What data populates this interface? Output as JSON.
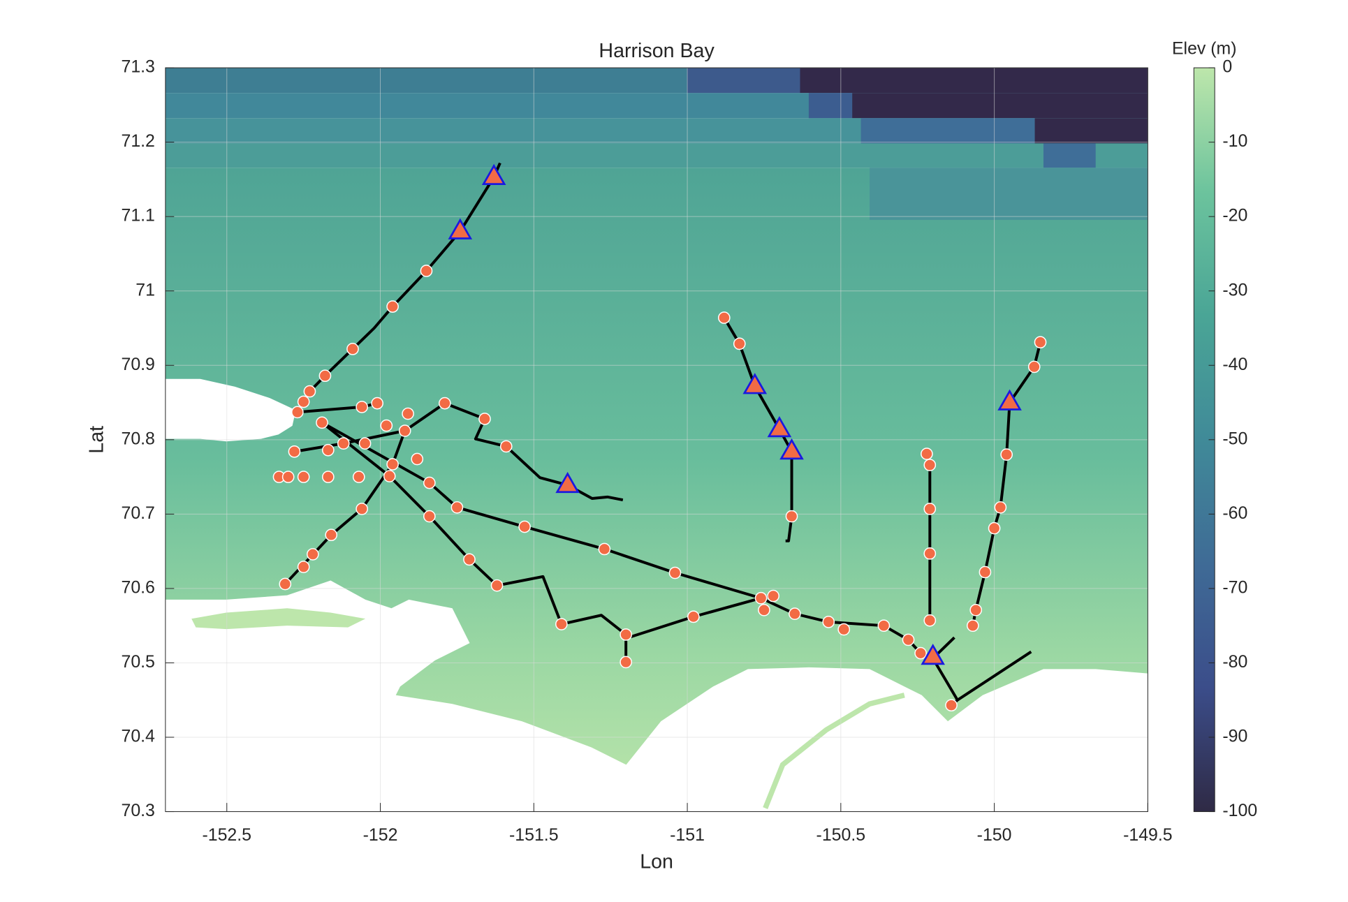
{
  "chart_data": {
    "type": "map",
    "title": "Harrison Bay",
    "xlabel": "Lon",
    "ylabel": "Lat",
    "xlim": [
      -152.7,
      -149.5
    ],
    "ylim": [
      70.3,
      71.3
    ],
    "xticks": [
      -152.5,
      -152,
      -151.5,
      -151,
      -150.5,
      -150,
      -149.5
    ],
    "yticks": [
      70.3,
      70.4,
      70.5,
      70.6,
      70.7,
      70.8,
      70.9,
      71,
      71.1,
      71.2,
      71.3
    ],
    "grid": true,
    "tracks": {
      "color": "#000000",
      "lines": [
        {
          "x": [
            -152.27,
            -152.25,
            -152.23,
            -152.18,
            -152.09,
            -152.02,
            -151.96,
            -151.85,
            -151.74,
            -151.63,
            -151.61
          ],
          "y": [
            70.837,
            70.851,
            70.865,
            70.886,
            70.922,
            70.95,
            70.979,
            71.027,
            71.08,
            71.153,
            71.172
          ]
        },
        {
          "x": [
            -150.88,
            -150.83,
            -150.78,
            -150.7,
            -150.66,
            -150.66,
            -150.67,
            -150.68
          ],
          "y": [
            70.964,
            70.929,
            70.872,
            70.814,
            70.784,
            70.697,
            70.664,
            70.664
          ]
        },
        {
          "x": [
            -149.85,
            -149.87,
            -149.95,
            -149.96,
            -149.98,
            -150,
            -150.03,
            -150.06,
            -150.07
          ],
          "y": [
            70.931,
            70.898,
            70.85,
            70.78,
            70.709,
            70.681,
            70.622,
            70.571,
            70.55
          ]
        },
        {
          "x": [
            -150.22,
            -150.21,
            -150.21,
            -150.21,
            -150.21
          ],
          "y": [
            70.781,
            70.766,
            70.707,
            70.647,
            70.557
          ]
        },
        {
          "x": [
            -152.27,
            -152.06,
            -152.01
          ],
          "y": [
            70.837,
            70.844,
            70.849
          ]
        },
        {
          "x": [
            -152.19,
            -151.97,
            -151.84,
            -151.71,
            -151.62,
            -151.47,
            -151.41,
            -151.28,
            -151.2,
            -151.2,
            -151.2,
            -150.98,
            -150.76,
            -150.65,
            -150.54,
            -150.36,
            -150.28,
            -150.24,
            -150.2,
            -150.13
          ],
          "y": [
            70.823,
            70.751,
            70.697,
            70.639,
            70.604,
            70.616,
            70.552,
            70.564,
            70.538,
            70.501,
            70.533,
            70.562,
            70.587,
            70.566,
            70.555,
            70.55,
            70.531,
            70.513,
            70.506,
            70.534
          ]
        },
        {
          "x": [
            -152.19,
            -151.84,
            -151.75,
            -151.53,
            -151.27,
            -151.04,
            -150.76,
            -150.72
          ],
          "y": [
            70.823,
            70.742,
            70.709,
            70.683,
            70.653,
            70.621,
            70.587,
            70.59
          ]
        },
        {
          "x": [
            -152.28,
            -152.12,
            -151.92,
            -151.79,
            -151.66,
            -151.69,
            -151.59,
            -151.48,
            -151.39,
            -151.31,
            -151.26,
            -151.21
          ],
          "y": [
            70.784,
            70.795,
            70.812,
            70.849,
            70.828,
            70.801,
            70.791,
            70.749,
            70.739,
            70.721,
            70.723,
            70.719
          ]
        },
        {
          "x": [
            -150.2,
            -150.12,
            -150.14,
            -150.12,
            -149.88
          ],
          "y": [
            70.506,
            70.45,
            70.443,
            70.45,
            70.515
          ]
        },
        {
          "x": [
            -152.31,
            -152.16,
            -152.06,
            -151.96,
            -151.92
          ],
          "y": [
            70.606,
            70.672,
            70.707,
            70.767,
            70.812
          ]
        }
      ]
    },
    "points": {
      "color": "#f26b45",
      "edgecolor": "#ffffff",
      "x": [
        -151.63,
        -151.74,
        -151.85,
        -151.96,
        -152.09,
        -152.18,
        -152.23,
        -152.25,
        -152.27,
        -152.19,
        -152.06,
        -152.01,
        -151.98,
        -151.92,
        -151.91,
        -152.28,
        -152.17,
        -152.12,
        -152.05,
        -151.96,
        -152.33,
        -152.3,
        -152.25,
        -152.17,
        -152.07,
        -151.97,
        -152.06,
        -151.88,
        -151.84,
        -151.75,
        -151.84,
        -152.16,
        -152.22,
        -152.25,
        -152.31,
        -151.71,
        -151.62,
        -151.79,
        -151.66,
        -151.59,
        -151.53,
        -151.27,
        -151.04,
        -151.41,
        -151.2,
        -151.2,
        -150.98,
        -150.76,
        -150.72,
        -150.75,
        -150.65,
        -150.54,
        -150.49,
        -150.36,
        -150.28,
        -150.24,
        -150.21,
        -150.14,
        -150.07,
        -150.06,
        -150.03,
        -150,
        -149.98,
        -149.96,
        -149.95,
        -149.87,
        -149.85,
        -150.22,
        -150.21,
        -150.21,
        -150.21,
        -150.66,
        -150.66,
        -150.7,
        -150.78,
        -150.83,
        -150.88,
        -151.39,
        -150.2
      ],
      "y": [
        71.153,
        71.08,
        71.027,
        70.979,
        70.922,
        70.886,
        70.865,
        70.851,
        70.837,
        70.823,
        70.844,
        70.849,
        70.819,
        70.812,
        70.835,
        70.784,
        70.786,
        70.795,
        70.795,
        70.767,
        70.75,
        70.75,
        70.75,
        70.75,
        70.75,
        70.751,
        70.707,
        70.774,
        70.742,
        70.709,
        70.697,
        70.672,
        70.646,
        70.629,
        70.606,
        70.639,
        70.604,
        70.849,
        70.828,
        70.791,
        70.683,
        70.653,
        70.621,
        70.552,
        70.538,
        70.501,
        70.562,
        70.587,
        70.59,
        70.571,
        70.566,
        70.555,
        70.545,
        70.55,
        70.531,
        70.513,
        70.557,
        70.443,
        70.55,
        70.571,
        70.622,
        70.681,
        70.709,
        70.78,
        70.85,
        70.898,
        70.931,
        70.781,
        70.766,
        70.707,
        70.647,
        70.697,
        70.784,
        70.814,
        70.872,
        70.929,
        70.964,
        70.739,
        70.506
      ]
    },
    "triangles": {
      "color": "#f26b45",
      "edgecolor": "#1a1ae0",
      "x": [
        -151.63,
        -151.74,
        -151.39,
        -150.78,
        -150.7,
        -150.66,
        -149.95,
        -150.2
      ],
      "y": [
        71.153,
        71.08,
        70.739,
        70.872,
        70.814,
        70.784,
        70.85,
        70.508
      ]
    },
    "colorbar": {
      "label": "Elev (m)",
      "lim": [
        -100,
        0
      ],
      "ticks": [
        -100,
        -90,
        -80,
        -70,
        -60,
        -50,
        -40,
        -30,
        -20,
        -10,
        0
      ],
      "colors": [
        "#2f2a45",
        "#3b4d8a",
        "#3f6b96",
        "#408a98",
        "#4aa596",
        "#6cc39d",
        "#bde6ab"
      ]
    }
  }
}
